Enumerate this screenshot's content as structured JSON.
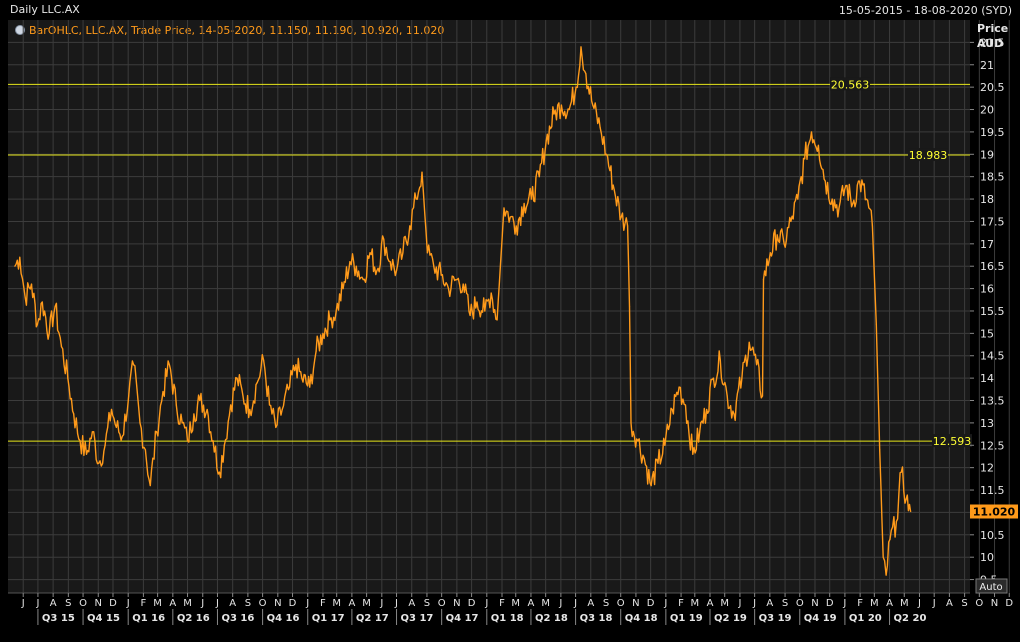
{
  "header": {
    "title": "Daily LLC.AX",
    "date_range": "15-05-2015 - 18-08-2020 (SYD)"
  },
  "legend": {
    "text": "BarOHLC, LLC.AX, Trade Price, 14-05-2020, 11.150, 11.190, 10.920, 11.020"
  },
  "axis": {
    "price_label": "Price",
    "currency_label": "AUD",
    "auto_button": "Auto",
    "last_price": "11.020"
  },
  "colors": {
    "series": "#ff9a1a",
    "hline": "#e6e61a",
    "grid": "#3c3c3c",
    "last_price_bg": "#ff9a1a"
  },
  "chart_data": {
    "type": "line",
    "title": "Daily LLC.AX",
    "ylabel": "Price AUD",
    "ylim": [
      9.2,
      22.0
    ],
    "yticks": [
      "9.5",
      "10",
      "10.5",
      "11",
      "11.5",
      "12",
      "12.5",
      "13",
      "13.5",
      "14",
      "14.5",
      "15",
      "15.5",
      "16",
      "16.5",
      "17",
      "17.5",
      "18",
      "18.5",
      "19",
      "19.5",
      "20",
      "20.5",
      "21",
      "21.5"
    ],
    "month_ticks": [
      "J",
      "J",
      "A",
      "S",
      "O",
      "N",
      "D",
      "J",
      "F",
      "M",
      "A",
      "M",
      "J",
      "J",
      "A",
      "S",
      "O",
      "N",
      "D",
      "J",
      "F",
      "M",
      "A",
      "M",
      "J",
      "J",
      "A",
      "S",
      "O",
      "N",
      "D",
      "J",
      "F",
      "M",
      "A",
      "M",
      "J",
      "J",
      "A",
      "S",
      "O",
      "N",
      "D",
      "J",
      "F",
      "M",
      "A",
      "M",
      "J",
      "J",
      "A",
      "S",
      "O",
      "N",
      "D",
      "J",
      "F",
      "M",
      "A",
      "M",
      "J",
      "J",
      "A",
      "S",
      "O",
      "N",
      "D",
      "J",
      "F",
      "M",
      "A",
      "M",
      "J",
      "J",
      "A"
    ],
    "quarter_ticks": [
      "Q3 15",
      "Q4 15",
      "Q1 16",
      "Q2 16",
      "Q3 16",
      "Q4 16",
      "Q1 17",
      "Q2 17",
      "Q3 17",
      "Q4 17",
      "Q1 18",
      "Q2 18",
      "Q3 18",
      "Q4 18",
      "Q1 19",
      "Q2 19",
      "Q3 19",
      "Q4 19",
      "Q1 20",
      "Q2 20"
    ],
    "horizontal_lines": [
      {
        "label": "20.563",
        "value": 20.563
      },
      {
        "label": "18.983",
        "value": 18.983
      },
      {
        "label": "12.593",
        "value": 12.593
      }
    ],
    "series": [
      {
        "points": [
          [
            "2015-05-15",
            16.5
          ],
          [
            "2015-05-25",
            16.7
          ],
          [
            "2015-06-05",
            15.8
          ],
          [
            "2015-06-18",
            16.1
          ],
          [
            "2015-06-30",
            15.2
          ],
          [
            "2015-07-10",
            15.7
          ],
          [
            "2015-07-24",
            15.0
          ],
          [
            "2015-08-05",
            15.6
          ],
          [
            "2015-08-18",
            14.7
          ],
          [
            "2015-08-31",
            14.0
          ],
          [
            "2015-09-12",
            13.2
          ],
          [
            "2015-09-25",
            12.6
          ],
          [
            "2015-10-08",
            12.3
          ],
          [
            "2015-10-20",
            12.8
          ],
          [
            "2015-11-02",
            12.1
          ],
          [
            "2015-11-15",
            12.5
          ],
          [
            "2015-11-28",
            13.3
          ],
          [
            "2015-12-08",
            12.9
          ],
          [
            "2015-12-20",
            12.7
          ],
          [
            "2016-01-02",
            13.6
          ],
          [
            "2016-01-12",
            14.3
          ],
          [
            "2016-01-25",
            13.0
          ],
          [
            "2016-02-05",
            12.4
          ],
          [
            "2016-02-15",
            11.6
          ],
          [
            "2016-02-28",
            12.8
          ],
          [
            "2016-03-12",
            13.7
          ],
          [
            "2016-03-25",
            14.3
          ],
          [
            "2016-04-08",
            13.4
          ],
          [
            "2016-04-20",
            13.0
          ],
          [
            "2016-05-01",
            12.6
          ],
          [
            "2016-05-14",
            13.2
          ],
          [
            "2016-05-26",
            13.5
          ],
          [
            "2016-06-10",
            13.3
          ],
          [
            "2016-06-22",
            12.6
          ],
          [
            "2016-07-05",
            11.9
          ],
          [
            "2016-07-15",
            12.5
          ],
          [
            "2016-07-28",
            13.4
          ],
          [
            "2016-08-10",
            14.0
          ],
          [
            "2016-08-22",
            13.6
          ],
          [
            "2016-09-05",
            13.3
          ],
          [
            "2016-09-20",
            13.9
          ],
          [
            "2016-10-03",
            14.4
          ],
          [
            "2016-10-15",
            13.4
          ],
          [
            "2016-10-28",
            12.9
          ],
          [
            "2016-11-10",
            13.3
          ],
          [
            "2016-11-25",
            13.8
          ],
          [
            "2016-12-08",
            14.3
          ],
          [
            "2016-12-20",
            14.0
          ],
          [
            "2017-01-05",
            13.8
          ],
          [
            "2017-01-18",
            14.6
          ],
          [
            "2017-02-01",
            15.0
          ],
          [
            "2017-02-15",
            15.3
          ],
          [
            "2017-02-28",
            15.5
          ],
          [
            "2017-03-14",
            16.0
          ],
          [
            "2017-03-28",
            16.6
          ],
          [
            "2017-04-10",
            16.5
          ],
          [
            "2017-04-24",
            16.2
          ],
          [
            "2017-05-08",
            16.8
          ],
          [
            "2017-05-22",
            16.4
          ],
          [
            "2017-06-05",
            17.1
          ],
          [
            "2017-06-18",
            16.6
          ],
          [
            "2017-07-01",
            16.4
          ],
          [
            "2017-07-14",
            16.8
          ],
          [
            "2017-07-28",
            17.4
          ],
          [
            "2017-08-10",
            18.0
          ],
          [
            "2017-08-22",
            18.6
          ],
          [
            "2017-09-02",
            16.8
          ],
          [
            "2017-09-15",
            16.5
          ],
          [
            "2017-09-30",
            16.3
          ],
          [
            "2017-10-15",
            16.0
          ],
          [
            "2017-10-30",
            16.2
          ],
          [
            "2017-11-14",
            16.1
          ],
          [
            "2017-11-28",
            15.4
          ],
          [
            "2017-12-12",
            15.7
          ],
          [
            "2017-12-28",
            15.5
          ],
          [
            "2018-01-10",
            15.9
          ],
          [
            "2018-01-22",
            15.3
          ],
          [
            "2018-02-05",
            17.8
          ],
          [
            "2018-02-18",
            17.6
          ],
          [
            "2018-03-02",
            17.4
          ],
          [
            "2018-03-18",
            17.9
          ],
          [
            "2018-04-02",
            18.0
          ],
          [
            "2018-04-18",
            18.5
          ],
          [
            "2018-05-02",
            19.3
          ],
          [
            "2018-05-18",
            19.9
          ],
          [
            "2018-06-02",
            20.1
          ],
          [
            "2018-06-18",
            20.0
          ],
          [
            "2018-07-02",
            20.5
          ],
          [
            "2018-07-12",
            21.4
          ],
          [
            "2018-07-22",
            20.8
          ],
          [
            "2018-08-05",
            20.1
          ],
          [
            "2018-08-20",
            19.6
          ],
          [
            "2018-09-02",
            19.0
          ],
          [
            "2018-09-18",
            18.2
          ],
          [
            "2018-10-02",
            17.6
          ],
          [
            "2018-10-15",
            17.4
          ],
          [
            "2018-10-19",
            15.6
          ],
          [
            "2018-10-22",
            13.0
          ],
          [
            "2018-11-05",
            12.6
          ],
          [
            "2018-11-18",
            12.2
          ],
          [
            "2018-12-02",
            11.6
          ],
          [
            "2018-12-16",
            12.1
          ],
          [
            "2018-12-30",
            12.5
          ],
          [
            "2019-01-14",
            13.3
          ],
          [
            "2019-01-28",
            13.8
          ],
          [
            "2019-02-10",
            13.4
          ],
          [
            "2019-02-25",
            12.3
          ],
          [
            "2019-03-11",
            12.8
          ],
          [
            "2019-03-25",
            13.3
          ],
          [
            "2019-04-08",
            14.0
          ],
          [
            "2019-04-22",
            14.4
          ],
          [
            "2019-05-06",
            13.6
          ],
          [
            "2019-05-20",
            13.2
          ],
          [
            "2019-06-05",
            14.0
          ],
          [
            "2019-06-20",
            14.8
          ],
          [
            "2019-07-05",
            14.3
          ],
          [
            "2019-07-17",
            13.6
          ],
          [
            "2019-07-19",
            16.2
          ],
          [
            "2019-08-02",
            16.8
          ],
          [
            "2019-08-16",
            17.2
          ],
          [
            "2019-08-30",
            17.0
          ],
          [
            "2019-09-13",
            17.5
          ],
          [
            "2019-09-27",
            18.0
          ],
          [
            "2019-10-11",
            18.9
          ],
          [
            "2019-10-25",
            19.5
          ],
          [
            "2019-11-08",
            19.2
          ],
          [
            "2019-11-22",
            18.4
          ],
          [
            "2019-12-06",
            18.0
          ],
          [
            "2019-12-20",
            17.8
          ],
          [
            "2020-01-03",
            18.3
          ],
          [
            "2020-01-17",
            17.9
          ],
          [
            "2020-01-31",
            18.4
          ],
          [
            "2020-02-14",
            18.0
          ],
          [
            "2020-02-26",
            17.4
          ],
          [
            "2020-03-05",
            15.2
          ],
          [
            "2020-03-12",
            12.4
          ],
          [
            "2020-03-19",
            10.0
          ],
          [
            "2020-03-25",
            9.6
          ],
          [
            "2020-04-02",
            10.4
          ],
          [
            "2020-04-15",
            10.8
          ],
          [
            "2020-04-25",
            11.9
          ],
          [
            "2020-05-05",
            11.3
          ],
          [
            "2020-05-14",
            11.02
          ]
        ]
      }
    ]
  }
}
